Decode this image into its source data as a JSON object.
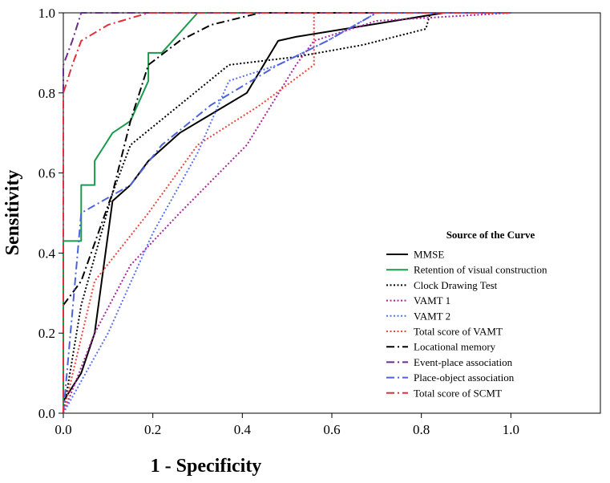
{
  "chart_data": {
    "type": "line",
    "xlabel": "1 - Specificity",
    "ylabel": "Sensitivity",
    "xlim": [
      0,
      1.2
    ],
    "ylim": [
      0,
      1
    ],
    "xticks": [
      "0.0",
      "0.2",
      "0.4",
      "0.6",
      "0.8",
      "1.0"
    ],
    "yticks": [
      "0.0",
      "0.2",
      "0.4",
      "0.6",
      "0.8",
      "1.0"
    ],
    "grid": false,
    "legend": {
      "title": "Source of the Curve",
      "placement": "bottom-right"
    },
    "series": [
      {
        "name": "MMSE",
        "color": "#000000",
        "dash": "solid",
        "points": [
          [
            0,
            0
          ],
          [
            0,
            0.03
          ],
          [
            0.04,
            0.1
          ],
          [
            0.07,
            0.2
          ],
          [
            0.11,
            0.53
          ],
          [
            0.15,
            0.57
          ],
          [
            0.19,
            0.63
          ],
          [
            0.26,
            0.7
          ],
          [
            0.41,
            0.8
          ],
          [
            0.48,
            0.93
          ],
          [
            0.52,
            0.94
          ],
          [
            0.74,
            0.98
          ],
          [
            0.85,
            1.0
          ],
          [
            1.0,
            1.0
          ]
        ]
      },
      {
        "name": "Retention of visual construction",
        "color": "#1a9a4c",
        "dash": "solid",
        "points": [
          [
            0,
            0
          ],
          [
            0,
            0.43
          ],
          [
            0.04,
            0.43
          ],
          [
            0.04,
            0.57
          ],
          [
            0.07,
            0.57
          ],
          [
            0.07,
            0.63
          ],
          [
            0.11,
            0.7
          ],
          [
            0.15,
            0.73
          ],
          [
            0.19,
            0.83
          ],
          [
            0.19,
            0.9
          ],
          [
            0.22,
            0.9
          ],
          [
            0.3,
            1.0
          ],
          [
            1.0,
            1.0
          ]
        ]
      },
      {
        "name": "Clock Drawing Test",
        "color": "#000000",
        "dash": "dotted",
        "points": [
          [
            0,
            0
          ],
          [
            0.04,
            0.27
          ],
          [
            0.11,
            0.55
          ],
          [
            0.15,
            0.67
          ],
          [
            0.26,
            0.77
          ],
          [
            0.37,
            0.87
          ],
          [
            0.52,
            0.89
          ],
          [
            0.67,
            0.92
          ],
          [
            0.81,
            0.96
          ],
          [
            0.82,
            1.0
          ],
          [
            1.0,
            1.0
          ]
        ]
      },
      {
        "name": "VAMT 1",
        "color": "#a8259e",
        "dash": "dotted",
        "points": [
          [
            0,
            0
          ],
          [
            0.07,
            0.2
          ],
          [
            0.15,
            0.37
          ],
          [
            0.26,
            0.5
          ],
          [
            0.41,
            0.67
          ],
          [
            0.52,
            0.87
          ],
          [
            0.56,
            0.93
          ],
          [
            0.7,
            0.98
          ],
          [
            1.0,
            1.0
          ]
        ]
      },
      {
        "name": "VAMT 2",
        "color": "#5b6ff5",
        "dash": "dotted",
        "points": [
          [
            0,
            0
          ],
          [
            0.1,
            0.2
          ],
          [
            0.2,
            0.45
          ],
          [
            0.3,
            0.65
          ],
          [
            0.37,
            0.83
          ],
          [
            0.48,
            0.87
          ],
          [
            0.59,
            0.93
          ],
          [
            0.7,
            1.0
          ],
          [
            1.0,
            1.0
          ]
        ]
      },
      {
        "name": "Total score of VAMT",
        "color": "#e8473f",
        "dash": "dotted",
        "points": [
          [
            0,
            0
          ],
          [
            0.07,
            0.33
          ],
          [
            0.19,
            0.5
          ],
          [
            0.3,
            0.67
          ],
          [
            0.44,
            0.77
          ],
          [
            0.56,
            0.87
          ],
          [
            0.56,
            1.0
          ],
          [
            1.0,
            1.0
          ]
        ]
      },
      {
        "name": "Locational memory",
        "color": "#000000",
        "dash": "dashdot",
        "points": [
          [
            0,
            0.27
          ],
          [
            0.04,
            0.33
          ],
          [
            0.11,
            0.55
          ],
          [
            0.15,
            0.73
          ],
          [
            0.19,
            0.87
          ],
          [
            0.26,
            0.93
          ],
          [
            0.33,
            0.97
          ],
          [
            0.44,
            1.0
          ],
          [
            1.0,
            1.0
          ]
        ]
      },
      {
        "name": "Event-place association",
        "color": "#6a2c8e",
        "dash": "dashdot",
        "points": [
          [
            0,
            0
          ],
          [
            0,
            0.87
          ],
          [
            0.02,
            0.93
          ],
          [
            0.04,
            1.0
          ],
          [
            1.0,
            1.0
          ]
        ]
      },
      {
        "name": "Place-object association",
        "color": "#4b63e0",
        "dash": "dashdot",
        "points": [
          [
            0,
            0
          ],
          [
            0.04,
            0.5
          ],
          [
            0.15,
            0.57
          ],
          [
            0.22,
            0.67
          ],
          [
            0.33,
            0.77
          ],
          [
            0.48,
            0.87
          ],
          [
            0.59,
            0.93
          ],
          [
            0.7,
            1.0
          ],
          [
            1.0,
            1.0
          ]
        ]
      },
      {
        "name": "Total score of SCMT",
        "color": "#e0303a",
        "dash": "dashdot",
        "points": [
          [
            0,
            0
          ],
          [
            0,
            0.8
          ],
          [
            0.02,
            0.87
          ],
          [
            0.04,
            0.93
          ],
          [
            0.1,
            0.97
          ],
          [
            0.19,
            1.0
          ],
          [
            1.0,
            1.0
          ]
        ]
      }
    ]
  }
}
